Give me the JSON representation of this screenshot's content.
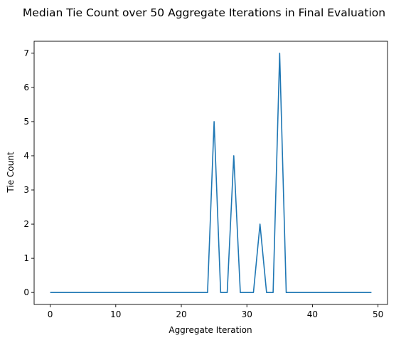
{
  "chart_data": {
    "type": "line",
    "title": "Median Tie Count over 50 Aggregate Iterations in Final Evaluation",
    "xlabel": "Aggregate Iteration",
    "ylabel": "Tie Count",
    "xlim": [
      -2.45,
      51.45
    ],
    "ylim": [
      -0.35,
      7.35
    ],
    "xticks": [
      0,
      10,
      20,
      30,
      40,
      50
    ],
    "yticks": [
      0,
      1,
      2,
      3,
      4,
      5,
      6,
      7
    ],
    "grid": false,
    "series": [
      {
        "color": "#1f77b4",
        "x": [
          0,
          1,
          2,
          3,
          4,
          5,
          6,
          7,
          8,
          9,
          10,
          11,
          12,
          13,
          14,
          15,
          16,
          17,
          18,
          19,
          20,
          21,
          22,
          23,
          24,
          25,
          26,
          27,
          28,
          29,
          30,
          31,
          32,
          33,
          34,
          35,
          36,
          37,
          38,
          39,
          40,
          41,
          42,
          43,
          44,
          45,
          46,
          47,
          48,
          49
        ],
        "y": [
          0,
          0,
          0,
          0,
          0,
          0,
          0,
          0,
          0,
          0,
          0,
          0,
          0,
          0,
          0,
          0,
          0,
          0,
          0,
          0,
          0,
          0,
          0,
          0,
          0,
          5,
          0,
          0,
          4,
          0,
          0,
          0,
          2,
          0,
          0,
          7,
          0,
          0,
          0,
          0,
          0,
          0,
          0,
          0,
          0,
          0,
          0,
          0,
          0,
          0
        ]
      }
    ]
  }
}
